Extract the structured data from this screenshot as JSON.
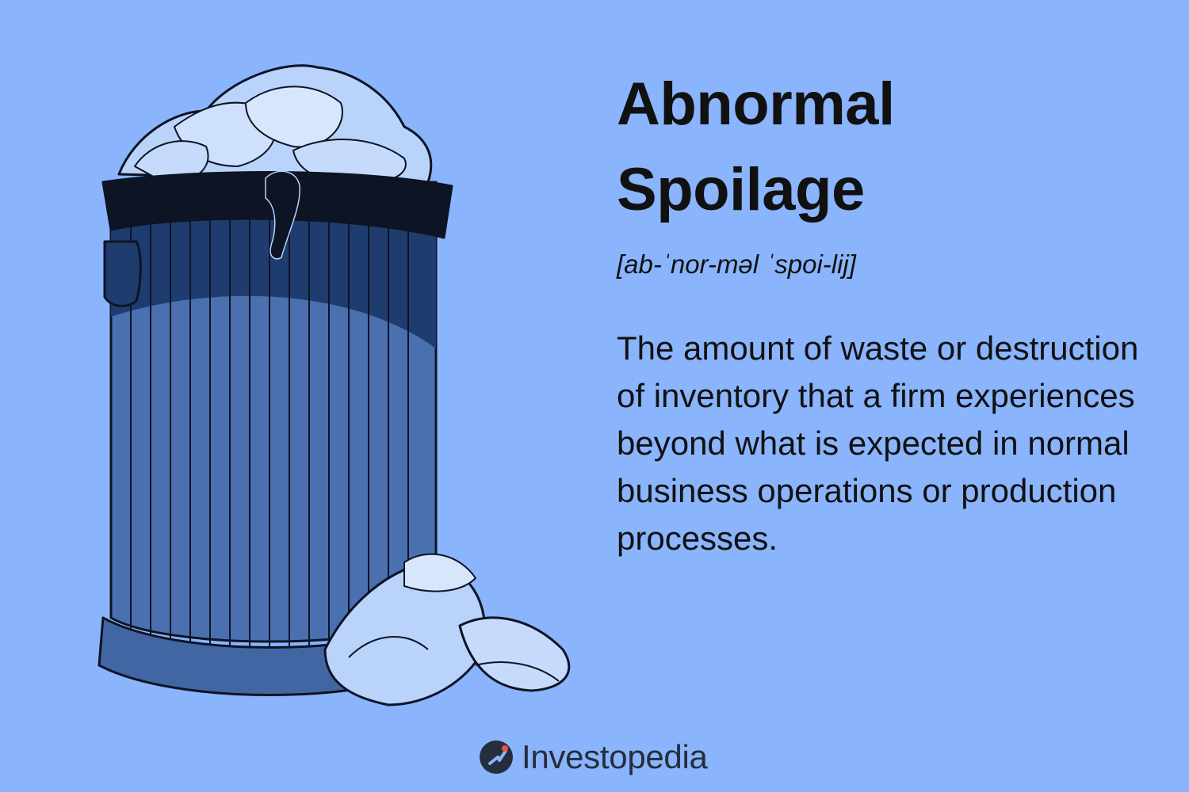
{
  "title": {
    "line1": "Abnormal",
    "line2": "Spoilage"
  },
  "pronunciation": "[ab-ˈnor-məl ˈspoi-lij]",
  "definition": "The amount of waste or destruction of inventory that a firm experiences beyond what is expected in normal business operations or production processes.",
  "brand": {
    "name": "Investopedia",
    "icon": "investopedia-logo-icon"
  },
  "illustration": {
    "icon": "trash-can-icon",
    "colors": {
      "background": "#8ab4fb",
      "can_body": "#4a70b0",
      "can_shadow": "#1f3c6e",
      "bag": "#0d1424",
      "paper": "#b9d3fb",
      "outline": "#0d1424"
    }
  }
}
